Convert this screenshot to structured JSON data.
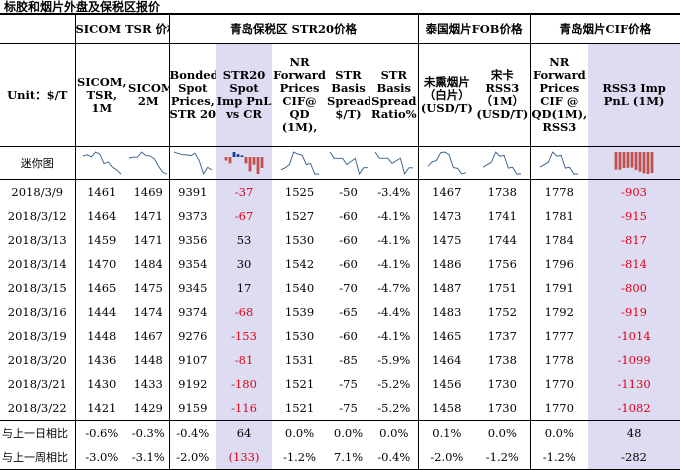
{
  "title": "标胶和烟片外盘及保税区报价",
  "groups": {
    "sicom": "SICOM TSR 价格",
    "qingdao_str20": "青岛保税区 STR20价格",
    "thai_fob": "泰国烟片FOB价格",
    "qingdao_cif": "青岛烟片CIF价格"
  },
  "headers": {
    "unit": "Unit：$/T",
    "c1": "SICOM, TSR, 1M",
    "c2": "SICOM,TSR, 2M",
    "c3": "Bonded Spot Prices, STR 20",
    "c4": "STR20 Spot Imp PnL vs CR",
    "c5": "NR Forward Prices CIF@ QD (1M),",
    "c6": "STR Basis Spread( $/T)",
    "c7": "STR Basis Spread Ratio%",
    "c8": "未熏烟片（白片）(USD/T)",
    "c9": "宋卡RSS3（1M）(USD/T)",
    "c10": "NR Forward Prices CIF @ QD(1M), RSS3",
    "c11": "RSS3 Imp PnL (1M)"
  },
  "spark_label": "迷你图",
  "rows": [
    {
      "date": "2018/3/9",
      "c1": "1461",
      "c2": "1469",
      "c3": "9391",
      "c4": "-37",
      "c5": "1525",
      "c6": "-50",
      "c7": "-3.4%",
      "c8": "1467",
      "c9": "1738",
      "c10": "1778",
      "c11": "-903"
    },
    {
      "date": "2018/3/12",
      "c1": "1464",
      "c2": "1471",
      "c3": "9373",
      "c4": "-67",
      "c5": "1527",
      "c6": "-60",
      "c7": "-4.1%",
      "c8": "1473",
      "c9": "1741",
      "c10": "1781",
      "c11": "-915"
    },
    {
      "date": "2018/3/13",
      "c1": "1459",
      "c2": "1471",
      "c3": "9356",
      "c4": "53",
      "c5": "1530",
      "c6": "-60",
      "c7": "-4.1%",
      "c8": "1475",
      "c9": "1744",
      "c10": "1784",
      "c11": "-817"
    },
    {
      "date": "2018/3/14",
      "c1": "1470",
      "c2": "1484",
      "c3": "9354",
      "c4": "30",
      "c5": "1542",
      "c6": "-60",
      "c7": "-4.1%",
      "c8": "1486",
      "c9": "1756",
      "c10": "1796",
      "c11": "-814"
    },
    {
      "date": "2018/3/15",
      "c1": "1465",
      "c2": "1475",
      "c3": "9345",
      "c4": "17",
      "c5": "1540",
      "c6": "-70",
      "c7": "-4.7%",
      "c8": "1487",
      "c9": "1751",
      "c10": "1791",
      "c11": "-800"
    },
    {
      "date": "2018/3/16",
      "c1": "1444",
      "c2": "1474",
      "c3": "9374",
      "c4": "-68",
      "c5": "1539",
      "c6": "-65",
      "c7": "-4.4%",
      "c8": "1483",
      "c9": "1752",
      "c10": "1792",
      "c11": "-919"
    },
    {
      "date": "2018/3/19",
      "c1": "1448",
      "c2": "1467",
      "c3": "9276",
      "c4": "-153",
      "c5": "1530",
      "c6": "-60",
      "c7": "-4.1%",
      "c8": "1465",
      "c9": "1737",
      "c10": "1777",
      "c11": "-1014"
    },
    {
      "date": "2018/3/20",
      "c1": "1436",
      "c2": "1448",
      "c3": "9107",
      "c4": "-81",
      "c5": "1531",
      "c6": "-85",
      "c7": "-5.9%",
      "c8": "1464",
      "c9": "1738",
      "c10": "1778",
      "c11": "-1099"
    },
    {
      "date": "2018/3/21",
      "c1": "1430",
      "c2": "1433",
      "c3": "9192",
      "c4": "-180",
      "c5": "1521",
      "c6": "-75",
      "c7": "-5.2%",
      "c8": "1456",
      "c9": "1730",
      "c10": "1770",
      "c11": "-1130"
    },
    {
      "date": "2018/3/22",
      "c1": "1421",
      "c2": "1429",
      "c3": "9159",
      "c4": "-116",
      "c5": "1521",
      "c6": "-75",
      "c7": "-5.2%",
      "c8": "1458",
      "c9": "1730",
      "c10": "1770",
      "c11": "-1082"
    }
  ],
  "comparisons": [
    {
      "label": "与上一日相比",
      "c1": "-0.6%",
      "c2": "-0.3%",
      "c3": "-0.4%",
      "c4": "64",
      "c5": "0.0%",
      "c6": "0.0%",
      "c7": "0.0%",
      "c8": "0.1%",
      "c9": "0.0%",
      "c10": "0.0%",
      "c11": "48"
    },
    {
      "label": "与上一周相比",
      "c1": "-3.0%",
      "c2": "-3.1%",
      "c3": "-2.0%",
      "c4": "(133)",
      "c5": "-1.2%",
      "c6": "7.1%",
      "c7": "-0.4%",
      "c8": "-2.0%",
      "c9": "-1.2%",
      "c10": "-1.2%",
      "c11": "-282"
    }
  ],
  "colors": {
    "negative": "#e60012",
    "highlight": "#dddcf3",
    "bar_positive": "#1f3a93",
    "bar_negative": "#c0504d",
    "spark_line": "#2e5a8a"
  }
}
